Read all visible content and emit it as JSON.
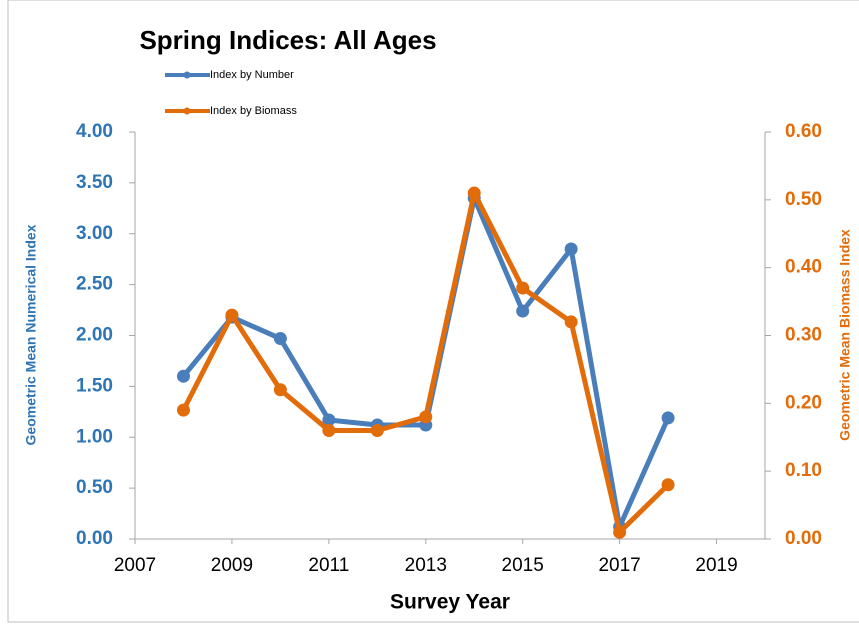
{
  "chart_data": {
    "type": "line",
    "title": "Spring Indices:  All Ages",
    "x_label": "Survey Year",
    "y_label": "Geometric Mean Numerical Index",
    "y2_label": "Geometric Mean Biomass Index",
    "x": [
      2008,
      2009,
      2010,
      2011,
      2012,
      2013,
      2014,
      2015,
      2016,
      2017,
      2018
    ],
    "series": [
      {
        "name": "Index by Number",
        "color": "#4a7ebb",
        "values": [
          1.6,
          2.18,
          1.97,
          1.17,
          1.12,
          1.12,
          3.35,
          2.24,
          2.85,
          0.12,
          1.19
        ]
      },
      {
        "name": "Index by Biomass",
        "color": "#e36c0a",
        "axis": "y2",
        "values": [
          0.19,
          0.33,
          0.22,
          0.16,
          0.16,
          0.18,
          0.51,
          0.37,
          0.32,
          0.01,
          0.08
        ]
      }
    ],
    "xlim": [
      2007,
      2020
    ],
    "xticks": [
      2007,
      2009,
      2011,
      2013,
      2015,
      2017,
      2019
    ],
    "ylim": [
      0,
      4
    ],
    "yticks": [
      {
        "value": 0,
        "label": "0.00"
      },
      {
        "value": 0.5,
        "label": "0.50"
      },
      {
        "value": 1,
        "label": "1.00"
      },
      {
        "value": 1.5,
        "label": "1.50"
      },
      {
        "value": 2,
        "label": "2.00"
      },
      {
        "value": 2.5,
        "label": "2.50"
      },
      {
        "value": 3,
        "label": "3.00"
      },
      {
        "value": 3.5,
        "label": "3.50"
      },
      {
        "value": 4,
        "label": "4.00"
      }
    ],
    "y2lim": [
      0,
      0.6
    ],
    "y2ticks": [
      {
        "value": 0,
        "label": "0.00"
      },
      {
        "value": 0.1,
        "label": "0.10"
      },
      {
        "value": 0.2,
        "label": "0.20"
      },
      {
        "value": 0.3,
        "label": "0.30"
      },
      {
        "value": 0.4,
        "label": "0.40"
      },
      {
        "value": 0.5,
        "label": "0.50"
      },
      {
        "value": 0.6,
        "label": "0.60"
      }
    ],
    "y_color": "#2e75b6",
    "y2_color": "#e36c0a"
  }
}
